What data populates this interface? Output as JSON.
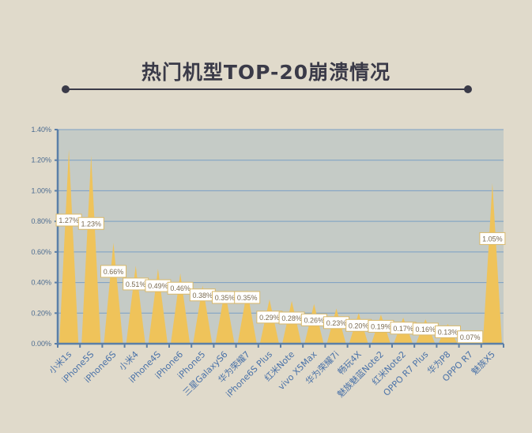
{
  "title": "热门机型TOP-20崩溃情况",
  "chart_data": {
    "type": "area",
    "title": "热门机型TOP-20崩溃情况",
    "categories": [
      "小米1s",
      "iPhone5S",
      "iPhone6S",
      "小米4",
      "iPhone4S",
      "iPhone6",
      "iPhone5",
      "三星GalaxyS6",
      "华为荣耀7",
      "iPhone6S Plus",
      "红米Note",
      "vivo X5Max",
      "华为荣耀7i",
      "畅玩4X",
      "魅族魅蓝Note2",
      "红米Note2",
      "OPPO R7 Plus",
      "华为P8",
      "OPPO R7",
      "魅族X5"
    ],
    "values": [
      1.27,
      1.23,
      0.66,
      0.51,
      0.49,
      0.46,
      0.38,
      0.35,
      0.35,
      0.29,
      0.28,
      0.26,
      0.23,
      0.2,
      0.19,
      0.17,
      0.16,
      0.13,
      0.07,
      1.05
    ],
    "data_labels": [
      "1.27%",
      "1.23%",
      "0.66%",
      "0.51%",
      "0.49%",
      "0.46%",
      "0.38%",
      "0.35%",
      "0.35%",
      "0.29%",
      "0.28%",
      "0.26%",
      "0.23%",
      "0.20%",
      "0.19%",
      "0.17%",
      "0.16%",
      "0.13%",
      "0.07%",
      "1.05%"
    ],
    "yticks": [
      "0.00%",
      "0.20%",
      "0.40%",
      "0.60%",
      "0.80%",
      "1.00%",
      "1.20%",
      "1.40%"
    ],
    "ylim": [
      0,
      1.4
    ],
    "grid": true,
    "colors": {
      "fill": "#efc35a",
      "plot_bg": "#c5cbc6",
      "grid": "#7a9fc4",
      "axis": "#5b7fa8",
      "label_text": "#7a6a50",
      "tick_text": "#5b7fa8"
    }
  }
}
